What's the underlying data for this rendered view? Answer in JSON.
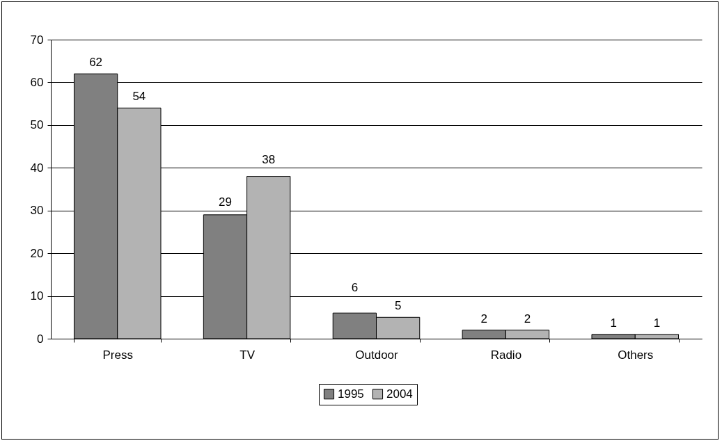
{
  "chart_data": {
    "type": "bar",
    "categories": [
      "Press",
      "TV",
      "Outdoor",
      "Radio",
      "Others"
    ],
    "series": [
      {
        "name": "1995",
        "color": "#808080",
        "values": [
          62,
          29,
          6,
          2,
          1
        ]
      },
      {
        "name": "2004",
        "color": "#b3b3b3",
        "values": [
          54,
          38,
          5,
          2,
          1
        ]
      }
    ],
    "ylim": [
      0,
      70
    ],
    "yticks": [
      0,
      10,
      20,
      30,
      40,
      50,
      60,
      70
    ],
    "grid": "y",
    "legend": "bottom",
    "data_labels": true
  }
}
